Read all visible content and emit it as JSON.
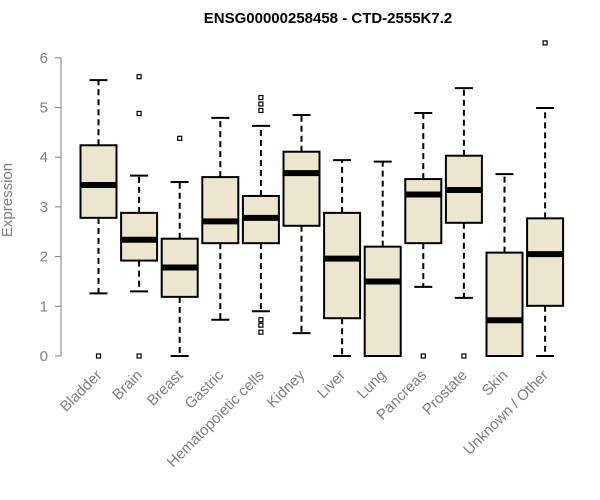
{
  "chart_data": {
    "type": "boxplot",
    "title": "ENSG00000258458 - CTD-2555K7.2",
    "xlabel": "",
    "ylabel": "Expression",
    "ylim": [
      0,
      6.3
    ],
    "yticks": [
      0,
      1,
      2,
      3,
      4,
      5,
      6
    ],
    "grid": false,
    "colors": {
      "box_fill": "#ede6cf",
      "box_stroke": "#000000",
      "median": "#000000",
      "axis": "#7f7f7f"
    },
    "categories": [
      "Bladder",
      "Brain",
      "Breast",
      "Gastric",
      "Hematopoietic cells",
      "Kidney",
      "Liver",
      "Lung",
      "Pancreas",
      "Prostate",
      "Skin",
      "Unknown / Other"
    ],
    "boxes": [
      {
        "q1": 2.78,
        "median": 3.44,
        "q3": 4.24,
        "low": 1.26,
        "high": 5.55,
        "outliers": [
          0
        ]
      },
      {
        "q1": 1.92,
        "median": 2.34,
        "q3": 2.88,
        "low": 1.3,
        "high": 3.63,
        "outliers": [
          0,
          4.88,
          5.62
        ]
      },
      {
        "q1": 1.19,
        "median": 1.78,
        "q3": 2.36,
        "low": 0,
        "high": 3.5,
        "outliers": [
          4.38
        ]
      },
      {
        "q1": 2.27,
        "median": 2.71,
        "q3": 3.6,
        "low": 0.73,
        "high": 4.79,
        "outliers": []
      },
      {
        "q1": 2.27,
        "median": 2.78,
        "q3": 3.22,
        "low": 0.9,
        "high": 4.63,
        "outliers": [
          0.48,
          0.62,
          0.73,
          4.94,
          5.07,
          5.2
        ]
      },
      {
        "q1": 2.62,
        "median": 3.68,
        "q3": 4.11,
        "low": 0.46,
        "high": 4.85,
        "outliers": []
      },
      {
        "q1": 0.76,
        "median": 1.96,
        "q3": 2.88,
        "low": 0,
        "high": 3.94,
        "outliers": []
      },
      {
        "q1": 0,
        "median": 1.5,
        "q3": 2.2,
        "low": 0,
        "high": 3.91,
        "outliers": []
      },
      {
        "q1": 2.27,
        "median": 3.25,
        "q3": 3.56,
        "low": 1.39,
        "high": 4.89,
        "outliers": [
          0
        ]
      },
      {
        "q1": 2.68,
        "median": 3.34,
        "q3": 4.03,
        "low": 1.17,
        "high": 5.39,
        "outliers": [
          0
        ]
      },
      {
        "q1": 0,
        "median": 0.72,
        "q3": 2.08,
        "low": 0,
        "high": 3.66,
        "outliers": []
      },
      {
        "q1": 1.01,
        "median": 2.05,
        "q3": 2.77,
        "low": 0,
        "high": 4.99,
        "outliers": [
          6.3
        ]
      }
    ]
  }
}
